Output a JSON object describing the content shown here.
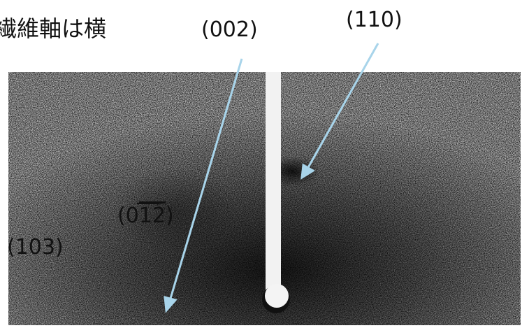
{
  "caption": "繊維軸は横",
  "labels": [
    {
      "text": "(002)"
    },
    {
      "text": "(110)"
    },
    {
      "parts": [
        "(0",
        "12",
        ")"
      ]
    },
    {
      "text": "(103)"
    }
  ]
}
